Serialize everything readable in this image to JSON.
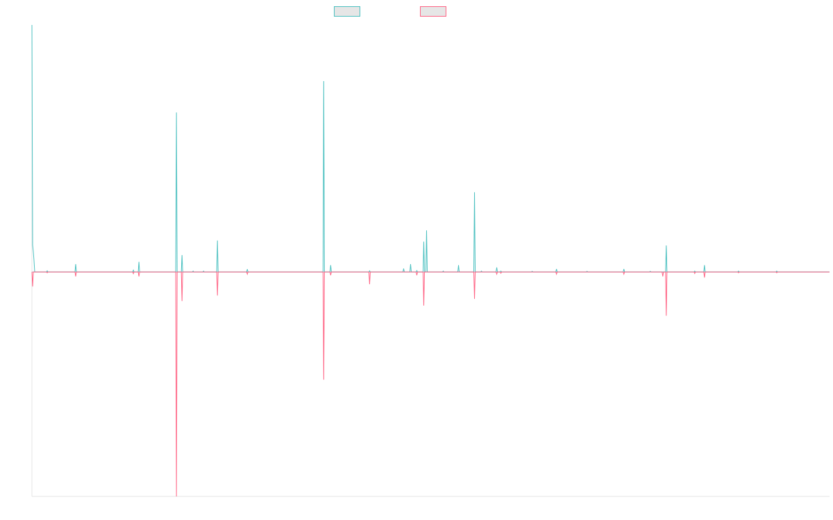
{
  "chart_data": {
    "type": "line",
    "title": "",
    "xlabel": "",
    "ylabel": "",
    "grid": false,
    "legend_position": "top",
    "x": [
      0,
      1,
      2,
      3,
      4,
      5,
      6,
      7,
      8,
      9,
      10,
      11,
      12,
      13,
      14,
      15,
      16,
      17,
      18,
      19,
      20,
      21,
      22,
      23,
      24,
      25,
      26,
      27,
      28,
      29,
      30,
      31,
      32,
      33,
      34,
      35,
      36,
      37,
      38,
      39,
      40,
      41,
      42,
      43,
      44,
      45,
      46,
      47,
      48,
      49,
      50,
      51,
      52,
      53,
      54,
      55,
      56,
      57,
      58,
      59,
      60,
      61,
      62,
      63,
      64,
      65,
      66,
      67,
      68,
      69,
      70,
      71,
      72,
      73,
      74,
      75,
      76,
      77,
      78,
      79,
      80,
      81,
      82,
      83,
      84,
      85,
      86,
      87,
      88,
      89,
      90,
      91,
      92,
      93,
      94,
      95,
      96,
      97,
      98,
      99,
      100,
      101,
      102,
      103,
      104,
      105,
      106,
      107,
      108,
      109,
      110,
      111,
      112,
      113,
      114,
      115,
      116,
      117,
      118,
      119,
      120,
      121,
      122,
      123,
      124,
      125,
      126,
      127,
      128,
      129,
      130,
      131,
      132,
      133,
      134,
      135,
      136,
      137,
      138,
      139,
      140,
      141,
      142,
      143,
      144,
      145,
      146,
      147,
      148,
      149,
      150,
      151,
      152,
      153,
      154,
      155,
      156,
      157,
      158,
      159,
      160,
      161,
      162,
      163,
      164,
      165,
      166,
      167,
      168,
      169,
      170,
      171,
      172,
      173,
      174,
      175,
      176,
      177,
      178,
      179,
      180,
      181,
      182,
      183,
      184,
      185,
      186,
      187,
      188,
      189,
      190,
      191,
      192,
      193,
      194,
      195,
      196,
      197,
      198,
      199,
      200,
      201,
      202,
      203,
      204,
      205,
      206,
      207,
      208,
      209,
      210,
      211,
      212,
      213,
      214,
      215,
      216,
      217,
      218,
      219,
      220,
      221,
      222,
      223,
      224,
      225,
      226,
      227,
      228,
      229,
      230,
      231,
      232,
      233,
      234,
      235,
      236,
      237,
      238,
      239,
      240,
      241,
      242,
      243,
      244,
      245,
      246,
      247,
      248,
      249,
      250,
      251,
      252,
      253,
      254,
      255,
      256,
      257,
      258,
      259,
      260,
      261,
      262,
      263,
      264,
      265,
      266,
      267,
      268,
      269,
      270,
      271,
      272,
      273,
      274,
      275,
      276,
      277,
      278,
      279,
      280,
      281,
      282,
      283,
      284,
      285,
      286,
      287,
      288,
      289,
      290,
      291,
      292,
      293,
      294,
      295,
      296,
      297,
      298,
      299,
      300,
      301,
      302,
      303,
      304,
      305,
      306,
      307,
      308,
      309,
      310,
      311,
      312,
      313,
      314,
      315,
      316,
      317,
      318,
      319,
      320,
      321,
      322,
      323,
      324,
      325,
      326,
      327,
      328,
      329,
      330,
      331,
      332,
      333,
      334,
      335,
      336,
      337,
      338,
      339,
      340,
      341,
      342,
      343,
      344,
      345,
      346,
      347,
      348,
      349,
      350,
      351,
      352,
      353,
      354,
      355,
      356,
      357,
      358,
      359,
      360,
      361,
      362,
      363,
      364,
      365,
      366,
      367,
      368,
      369,
      370,
      371,
      372,
      373,
      374,
      375,
      376,
      377,
      378,
      379,
      380,
      381,
      382,
      383,
      384,
      385,
      386,
      387,
      388,
      389,
      390,
      391,
      392,
      393,
      394,
      395,
      396,
      397,
      398,
      399,
      400,
      401,
      402,
      403,
      404,
      405,
      406,
      407,
      408,
      409,
      410,
      411,
      412,
      413,
      414,
      415,
      416,
      417,
      418,
      419,
      420,
      421,
      422,
      423,
      424,
      425,
      426,
      427,
      428,
      429,
      430,
      431,
      432,
      433,
      434,
      435,
      436,
      437,
      438,
      439,
      440,
      441,
      442,
      443,
      444,
      445,
      446,
      447,
      448,
      449,
      450,
      451,
      452,
      453,
      454,
      455,
      456,
      457,
      458,
      459,
      460,
      461,
      462,
      463,
      464,
      465,
      466,
      467,
      468,
      469,
      470,
      471,
      472,
      473,
      474,
      475,
      476,
      477,
      478,
      479,
      480,
      481,
      482,
      483,
      484,
      485,
      486,
      487,
      488,
      489,
      490,
      491,
      492,
      493,
      494,
      495,
      496,
      497,
      498,
      499,
      500,
      501,
      502,
      503,
      504,
      505,
      506,
      507,
      508,
      509,
      510,
      511,
      512,
      513,
      514,
      515,
      516,
      517,
      518,
      519,
      520,
      521,
      522,
      523,
      524,
      525,
      526,
      527,
      528,
      529,
      530,
      531,
      532,
      533,
      534,
      535,
      536,
      537,
      538,
      539,
      540,
      541,
      542,
      543,
      544,
      545,
      546,
      547,
      548,
      549,
      550,
      551,
      552,
      553,
      554,
      555,
      556,
      557,
      558,
      559,
      560,
      561,
      562,
      563,
      564,
      565,
      566,
      567,
      568,
      569,
      570,
      571,
      572,
      573,
      574,
      575,
      576,
      577,
      578,
      579,
      580,
      581,
      582,
      583,
      584,
      585,
      586,
      587,
      588,
      589,
      590,
      591,
      592,
      593,
      594,
      595,
      596,
      597,
      598,
      599,
      600,
      601,
      602,
      603,
      604,
      605,
      606,
      607,
      608,
      609,
      610,
      611,
      612,
      613,
      614,
      615,
      616,
      617,
      618,
      619,
      620,
      621,
      622,
      623,
      624,
      625,
      626,
      627,
      628,
      629,
      630,
      631,
      632,
      633,
      634,
      635,
      636,
      637,
      638,
      639,
      640,
      641,
      642,
      643,
      644,
      645,
      646,
      647,
      648,
      649,
      650,
      651,
      652,
      653,
      654,
      655,
      656,
      657,
      658,
      659,
      660,
      661,
      662,
      663,
      664,
      665,
      666,
      667,
      668,
      669,
      670,
      671,
      672,
      673,
      674,
      675,
      676,
      677,
      678,
      679,
      680,
      681,
      682,
      683,
      684,
      685,
      686,
      687,
      688,
      689,
      690,
      691,
      692,
      693,
      694,
      695,
      696,
      697,
      698,
      699,
      700,
      701,
      702,
      703,
      704,
      705,
      706,
      707,
      708,
      709,
      710,
      711,
      712,
      713,
      714,
      715,
      716,
      717,
      718,
      719,
      720,
      721,
      722,
      723,
      724,
      725,
      726,
      727,
      728,
      729,
      730,
      731,
      732,
      733,
      734,
      735,
      736,
      737,
      738,
      739,
      740,
      741,
      742,
      743,
      744,
      745,
      746,
      747,
      748,
      749,
      750,
      751,
      752,
      753,
      754,
      755,
      756,
      757,
      758,
      759,
      760,
      761,
      762,
      763,
      764,
      765,
      766,
      767,
      768,
      769,
      770,
      771,
      772,
      773,
      774,
      775,
      776,
      777,
      778,
      779,
      780,
      781,
      782,
      783,
      784,
      785,
      786,
      787,
      788,
      789,
      790,
      791,
      792,
      793,
      794,
      795,
      796,
      797,
      798,
      799,
      800,
      801,
      802,
      803,
      804,
      805,
      806,
      807,
      808,
      809,
      810,
      811,
      812,
      813,
      814,
      815,
      816,
      817,
      818,
      819,
      820,
      821,
      822,
      823,
      824,
      825,
      826,
      827,
      828,
      829,
      830,
      831,
      832,
      833,
      834,
      835,
      836,
      837,
      838,
      839,
      840,
      841,
      842,
      843,
      844,
      845,
      846,
      847,
      848,
      849,
      850,
      851,
      852,
      853,
      854,
      855,
      856,
      857,
      858,
      859,
      860,
      861,
      862,
      863,
      864,
      865,
      866,
      867,
      868,
      869,
      870,
      871,
      872,
      873,
      874,
      875,
      876,
      877,
      878,
      879,
      880,
      881,
      882,
      883,
      884,
      885,
      886,
      887,
      888,
      889,
      890,
      891,
      892,
      893,
      894,
      895,
      896,
      897,
      898,
      899,
      900,
      901,
      902,
      903,
      904,
      905,
      906,
      907,
      908,
      909,
      910,
      911,
      912,
      913,
      914,
      915,
      916,
      917,
      918,
      919,
      920,
      921,
      922,
      923,
      924,
      925,
      926,
      927,
      928,
      929,
      930,
      931,
      932,
      933,
      934,
      935,
      936,
      937,
      938,
      939,
      940,
      941,
      942,
      943,
      944,
      945,
      946,
      947,
      948,
      949,
      950,
      951,
      952,
      953,
      954,
      955,
      956,
      957,
      958,
      959,
      960,
      961,
      962,
      963,
      964,
      965,
      966,
      967,
      968,
      969,
      970,
      971,
      972,
      973,
      974,
      975,
      976,
      977,
      978,
      979,
      980,
      981,
      982,
      983,
      984,
      985,
      986,
      987,
      988,
      989,
      990,
      991,
      992,
      993,
      994,
      995,
      996,
      997,
      998,
      999,
      1000,
      1001,
      1002,
      1003,
      1004,
      1005,
      1006,
      1007,
      1008,
      1009,
      1010,
      1011,
      1012,
      1013,
      1014,
      1015,
      1016,
      1017,
      1018,
      1019,
      1020,
      1021,
      1022,
      1023,
      1024,
      1025,
      1026,
      1027,
      1028,
      1029,
      1030,
      1031,
      1032,
      1033,
      1034,
      1035,
      1036,
      1037,
      1038,
      1039,
      1040,
      1041,
      1042,
      1043,
      1044,
      1045,
      1046,
      1047,
      1048,
      1049,
      1050,
      1051,
      1052,
      1053,
      1054,
      1055,
      1056,
      1057,
      1058,
      1059,
      1060,
      1061,
      1062,
      1063,
      1064,
      1065,
      1066,
      1067,
      1068,
      1069,
      1070,
      1071,
      1072,
      1073,
      1074,
      1075,
      1076,
      1077,
      1078,
      1079,
      1080,
      1081,
      1082,
      1083,
      1084,
      1085,
      1086,
      1087,
      1088,
      1089,
      1090,
      1091,
      1092,
      1093,
      1094,
      1095,
      1096,
      1097,
      1098,
      1099,
      1100,
      1101,
      1102,
      1103,
      1104,
      1105,
      1106,
      1107,
      1108,
      1109,
      1110,
      1111,
      1112,
      1113,
      1114,
      1115,
      1116,
      1117,
      1118,
      1119,
      1120,
      1121,
      1122,
      1123,
      1124,
      1125,
      1126,
      1127,
      1128,
      1129,
      1130,
      1131,
      1132,
      1133,
      1134,
      1135,
      1136,
      1137,
      1138,
      1139,
      1140,
      1141,
      1142,
      1143,
      1144,
      1145,
      1146,
      1147,
      1148
    ],
    "series": [
      {
        "name": "",
        "color": "#4bc0c0",
        "fill": "#e6e6e6",
        "peaks": [
          {
            "x": 0,
            "y": 1.1
          },
          {
            "x": 1,
            "y": 0.12
          },
          {
            "x": 2,
            "y": 0.09
          },
          {
            "x": 3,
            "y": 0.05
          },
          {
            "x": 22,
            "y": 0.005
          },
          {
            "x": 63,
            "y": 0.035
          },
          {
            "x": 146,
            "y": 0.008
          },
          {
            "x": 154,
            "y": 0.045
          },
          {
            "x": 208,
            "y": 0.71
          },
          {
            "x": 216,
            "y": 0.075
          },
          {
            "x": 232,
            "y": 0.004
          },
          {
            "x": 247,
            "y": 0.004
          },
          {
            "x": 267,
            "y": 0.14
          },
          {
            "x": 310,
            "y": 0.012
          },
          {
            "x": 420,
            "y": 0.85
          },
          {
            "x": 430,
            "y": 0.03
          },
          {
            "x": 486,
            "y": 0.005
          },
          {
            "x": 535,
            "y": 0.015
          },
          {
            "x": 545,
            "y": 0.035
          },
          {
            "x": 554,
            "y": 0.006
          },
          {
            "x": 564,
            "y": 0.135
          },
          {
            "x": 568,
            "y": 0.185
          },
          {
            "x": 592,
            "y": 0.004
          },
          {
            "x": 614,
            "y": 0.03
          },
          {
            "x": 637,
            "y": 0.355
          },
          {
            "x": 647,
            "y": 0.004
          },
          {
            "x": 669,
            "y": 0.02
          },
          {
            "x": 675,
            "y": 0.004
          },
          {
            "x": 720,
            "y": 0.003
          },
          {
            "x": 755,
            "y": 0.013
          },
          {
            "x": 799,
            "y": 0.003
          },
          {
            "x": 852,
            "y": 0.013
          },
          {
            "x": 890,
            "y": 0.003
          },
          {
            "x": 913,
            "y": 0.118
          },
          {
            "x": 954,
            "y": 0.004
          },
          {
            "x": 968,
            "y": 0.03
          },
          {
            "x": 1017,
            "y": 0.004
          },
          {
            "x": 1072,
            "y": 0.004
          }
        ]
      },
      {
        "name": "",
        "color": "#ff6384",
        "fill": "#e6e6e6",
        "peaks": [
          {
            "x": 1,
            "y": -0.065
          },
          {
            "x": 22,
            "y": -0.004
          },
          {
            "x": 63,
            "y": -0.02
          },
          {
            "x": 146,
            "y": -0.008
          },
          {
            "x": 154,
            "y": -0.02
          },
          {
            "x": 208,
            "y": -1.0
          },
          {
            "x": 216,
            "y": -0.13
          },
          {
            "x": 267,
            "y": -0.105
          },
          {
            "x": 310,
            "y": -0.01
          },
          {
            "x": 420,
            "y": -0.48
          },
          {
            "x": 430,
            "y": -0.015
          },
          {
            "x": 486,
            "y": -0.055
          },
          {
            "x": 554,
            "y": -0.015
          },
          {
            "x": 564,
            "y": -0.15
          },
          {
            "x": 637,
            "y": -0.12
          },
          {
            "x": 669,
            "y": -0.01
          },
          {
            "x": 675,
            "y": -0.006
          },
          {
            "x": 755,
            "y": -0.01
          },
          {
            "x": 852,
            "y": -0.01
          },
          {
            "x": 908,
            "y": -0.02
          },
          {
            "x": 913,
            "y": -0.195
          },
          {
            "x": 954,
            "y": -0.007
          },
          {
            "x": 968,
            "y": -0.025
          },
          {
            "x": 1017,
            "y": -0.004
          },
          {
            "x": 1072,
            "y": -0.004
          }
        ]
      }
    ],
    "xlim": [
      0,
      1148
    ],
    "ylim": [
      -1.0,
      1.1
    ]
  },
  "legend": {
    "items": [
      {
        "label": "",
        "color": "#4bc0c0",
        "fill": "#e6e6e6"
      },
      {
        "label": "",
        "color": "#ff6384",
        "fill": "#e6e6e6"
      }
    ]
  },
  "axis_color": "#e6e6e6",
  "baseline_color": "#9fb9c9"
}
